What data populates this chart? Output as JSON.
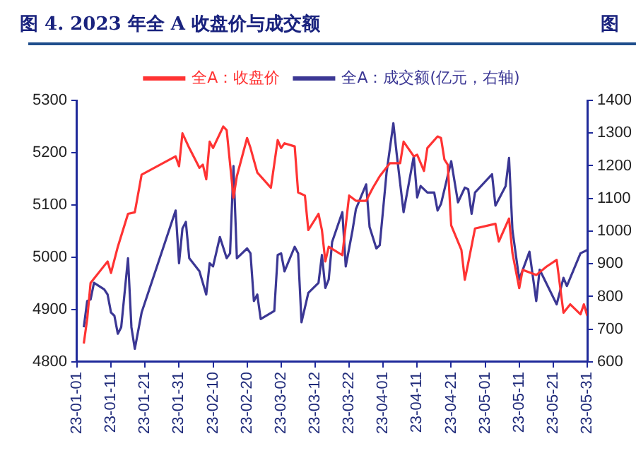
{
  "chart_data": {
    "type": "line",
    "title": "图  4. 2023 年全 A 收盘价与成交额",
    "annotations": [
      "图"
    ],
    "xlim": [
      "2023-01-01",
      "2023-05-31"
    ],
    "xticks": [
      {
        "value": "2023-01-01",
        "label": "23-01-01"
      },
      {
        "value": "2023-01-11",
        "label": "23-01-11"
      },
      {
        "value": "2023-01-21",
        "label": "23-01-21"
      },
      {
        "value": "2023-01-31",
        "label": "23-01-31"
      },
      {
        "value": "2023-02-10",
        "label": "23-02-10"
      },
      {
        "value": "2023-02-20",
        "label": "23-02-20"
      },
      {
        "value": "2023-03-02",
        "label": "23-03-02"
      },
      {
        "value": "2023-03-12",
        "label": "23-03-12"
      },
      {
        "value": "2023-03-22",
        "label": "23-03-22"
      },
      {
        "value": "2023-04-01",
        "label": "23-04-01"
      },
      {
        "value": "2023-04-11",
        "label": "23-04-11"
      },
      {
        "value": "2023-04-21",
        "label": "23-04-21"
      },
      {
        "value": "2023-05-01",
        "label": "23-05-01"
      },
      {
        "value": "2023-05-11",
        "label": "23-05-11"
      },
      {
        "value": "2023-05-21",
        "label": "23-05-21"
      },
      {
        "value": "2023-05-31",
        "label": "23-05-31"
      }
    ],
    "ylim": [
      4800,
      5300
    ],
    "yticks": [
      4800,
      4900,
      5000,
      5100,
      5200,
      5300
    ],
    "y2lim": [
      600,
      1400
    ],
    "y2ticks": [
      600,
      700,
      800,
      900,
      1000,
      1100,
      1200,
      1300,
      1400
    ],
    "grid": false,
    "legend": "top",
    "marker": "none",
    "line_style": "solid",
    "series": [
      {
        "name": "全A：收盘价",
        "color": "#ff3333",
        "x": [
          "2023-01-03",
          "2023-01-04",
          "2023-01-05",
          "2023-01-10",
          "2023-01-11",
          "2023-01-13",
          "2023-01-16",
          "2023-01-18",
          "2023-01-20",
          "2023-01-30",
          "2023-01-31",
          "2023-02-01",
          "2023-02-03",
          "2023-02-06",
          "2023-02-07",
          "2023-02-08",
          "2023-02-09",
          "2023-02-10",
          "2023-02-13",
          "2023-02-14",
          "2023-02-16",
          "2023-02-17",
          "2023-02-20",
          "2023-02-21",
          "2023-02-23",
          "2023-02-27",
          "2023-03-01",
          "2023-03-02",
          "2023-03-03",
          "2023-03-06",
          "2023-03-07",
          "2023-03-09",
          "2023-03-10",
          "2023-03-13",
          "2023-03-14",
          "2023-03-15",
          "2023-03-16",
          "2023-03-20",
          "2023-03-22",
          "2023-03-24",
          "2023-03-27",
          "2023-03-29",
          "2023-03-31",
          "2023-04-03",
          "2023-04-06",
          "2023-04-07",
          "2023-04-10",
          "2023-04-11",
          "2023-04-13",
          "2023-04-14",
          "2023-04-17",
          "2023-04-18",
          "2023-04-19",
          "2023-04-20",
          "2023-04-21",
          "2023-04-24",
          "2023-04-25",
          "2023-04-26",
          "2023-04-28",
          "2023-05-04",
          "2023-05-05",
          "2023-05-08",
          "2023-05-09",
          "2023-05-11",
          "2023-05-12",
          "2023-05-16",
          "2023-05-19",
          "2023-05-22",
          "2023-05-24",
          "2023-05-26",
          "2023-05-29",
          "2023-05-30",
          "2023-05-31"
        ],
        "values": [
          4835,
          4882,
          4951,
          4992,
          4970,
          5020,
          5083,
          5086,
          5158,
          5193,
          5174,
          5237,
          5209,
          5171,
          5177,
          5149,
          5221,
          5209,
          5250,
          5243,
          5114,
          5155,
          5228,
          5209,
          5162,
          5133,
          5224,
          5209,
          5218,
          5212,
          5124,
          5118,
          5052,
          5083,
          5052,
          4992,
          5020,
          5004,
          5118,
          5108,
          5108,
          5133,
          5155,
          5180,
          5180,
          5221,
          5193,
          5196,
          5165,
          5209,
          5231,
          5228,
          5187,
          5177,
          5061,
          5014,
          4957,
          4989,
          5055,
          5064,
          5030,
          5074,
          5008,
          4941,
          4976,
          4966,
          4982,
          4995,
          4894,
          4910,
          4891,
          4910,
          4888
        ]
      },
      {
        "name": "全A：成交额(亿元，右轴)",
        "color": "#3b3794",
        "axis": "y2",
        "x": [
          "2023-01-03",
          "2023-01-04",
          "2023-01-05",
          "2023-01-06",
          "2023-01-09",
          "2023-01-10",
          "2023-01-11",
          "2023-01-12",
          "2023-01-13",
          "2023-01-14",
          "2023-01-16",
          "2023-01-17",
          "2023-01-18",
          "2023-01-20",
          "2023-01-30",
          "2023-01-31",
          "2023-02-01",
          "2023-02-02",
          "2023-02-03",
          "2023-02-06",
          "2023-02-08",
          "2023-02-09",
          "2023-02-10",
          "2023-02-12",
          "2023-02-14",
          "2023-02-15",
          "2023-02-16",
          "2023-02-17",
          "2023-02-20",
          "2023-02-21",
          "2023-02-22",
          "2023-02-23",
          "2023-02-24",
          "2023-02-28",
          "2023-03-01",
          "2023-03-02",
          "2023-03-03",
          "2023-03-06",
          "2023-03-07",
          "2023-03-08",
          "2023-03-10",
          "2023-03-13",
          "2023-03-14",
          "2023-03-15",
          "2023-03-16",
          "2023-03-17",
          "2023-03-20",
          "2023-03-21",
          "2023-03-23",
          "2023-03-24",
          "2023-03-27",
          "2023-03-28",
          "2023-03-30",
          "2023-03-31",
          "2023-04-02",
          "2023-04-04",
          "2023-04-05",
          "2023-04-07",
          "2023-04-10",
          "2023-04-11",
          "2023-04-12",
          "2023-04-14",
          "2023-04-16",
          "2023-04-17",
          "2023-04-18",
          "2023-04-21",
          "2023-04-23",
          "2023-04-25",
          "2023-04-26",
          "2023-04-27",
          "2023-04-28",
          "2023-05-03",
          "2023-05-04",
          "2023-05-07",
          "2023-05-08",
          "2023-05-09",
          "2023-05-11",
          "2023-05-14",
          "2023-05-16",
          "2023-05-17",
          "2023-05-22",
          "2023-05-24",
          "2023-05-25",
          "2023-05-29",
          "2023-05-31"
        ],
        "values": [
          706,
          786,
          791,
          842,
          822,
          806,
          751,
          741,
          686,
          706,
          917,
          706,
          640,
          751,
          1063,
          902,
          1008,
          1028,
          917,
          877,
          806,
          902,
          892,
          982,
          917,
          932,
          1199,
          917,
          947,
          932,
          786,
          806,
          731,
          756,
          927,
          932,
          877,
          952,
          932,
          721,
          811,
          842,
          927,
          826,
          852,
          967,
          1058,
          892,
          1003,
          1068,
          1143,
          1013,
          947,
          957,
          1179,
          1330,
          1234,
          1058,
          1229,
          1103,
          1138,
          1118,
          1118,
          1063,
          1083,
          1214,
          1088,
          1133,
          1128,
          1053,
          1118,
          1174,
          1078,
          1138,
          1224,
          1003,
          852,
          937,
          786,
          882,
          776,
          857,
          832,
          932,
          942
        ]
      }
    ]
  }
}
